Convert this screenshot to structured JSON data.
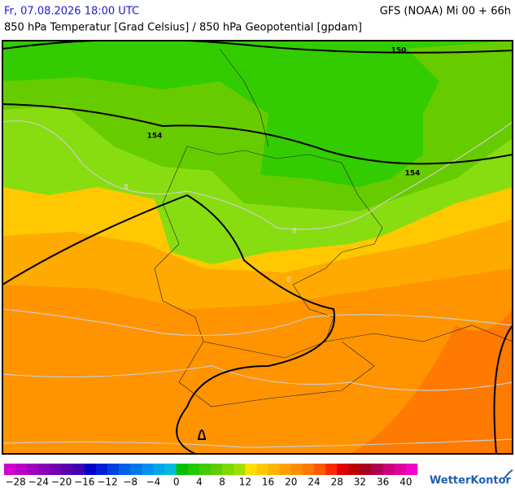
{
  "header": {
    "datetime": "Fr, 07.08.2026 18:00 UTC",
    "model": "GFS (NOAA) Mi 00 + 66h",
    "subtitle": "850 hPa Temperatur [Grad Celsius] / 850 hPa Geopotential [gpdam]"
  },
  "map": {
    "contour_labels": [
      "150",
      "154",
      "154"
    ],
    "isotherm_labels": [
      "8",
      "8",
      "8"
    ]
  },
  "colorbar": {
    "labels": [
      "−28",
      "−24",
      "−20",
      "−16",
      "−12",
      "−8",
      "−4",
      "0",
      "4",
      "8",
      "12",
      "16",
      "20",
      "24",
      "28",
      "32",
      "36",
      "40"
    ],
    "colors": [
      "#d000d0",
      "#b800c8",
      "#a000c0",
      "#8800b8",
      "#7000b0",
      "#5800b0",
      "#4000b8",
      "#0000c8",
      "#0020d8",
      "#0040e0",
      "#0060e8",
      "#0078ec",
      "#0090f0",
      "#00a8e8",
      "#00bcdc",
      "#00c000",
      "#20c800",
      "#40cc00",
      "#60cc00",
      "#80d800",
      "#a0e000",
      "#ffe000",
      "#ffc800",
      "#ffb400",
      "#ffa000",
      "#ff8c00",
      "#ff7800",
      "#ff5a00",
      "#ff2800",
      "#e00000",
      "#c00000",
      "#a80020",
      "#b00050",
      "#cc0078",
      "#e000a0",
      "#f000c8"
    ]
  },
  "brand": "WetterKontor"
}
